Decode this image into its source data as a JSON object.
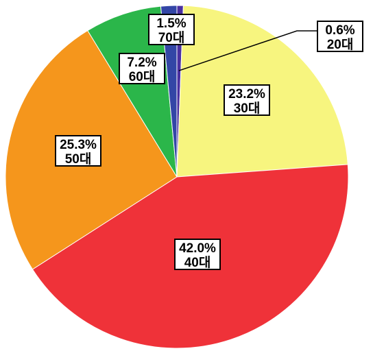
{
  "chart_data": {
    "type": "pie",
    "title": "",
    "start_angle_deg": -90,
    "direction": "clockwise",
    "slices": [
      {
        "category": "20대",
        "percent_label": "0.6%",
        "value": 0.6,
        "color": "#4a2fa0"
      },
      {
        "category": "30대",
        "percent_label": "23.2%",
        "value": 23.2,
        "color": "#f7f57f"
      },
      {
        "category": "40대",
        "percent_label": "42.0%",
        "value": 42.0,
        "color": "#ef3239"
      },
      {
        "category": "50대",
        "percent_label": "25.3%",
        "value": 25.3,
        "color": "#f5961c"
      },
      {
        "category": "60대",
        "percent_label": "7.2%",
        "value": 7.2,
        "color": "#2bb64a"
      },
      {
        "category": "70대",
        "percent_label": "1.5%",
        "value": 1.5,
        "color": "#3346a6"
      }
    ]
  }
}
